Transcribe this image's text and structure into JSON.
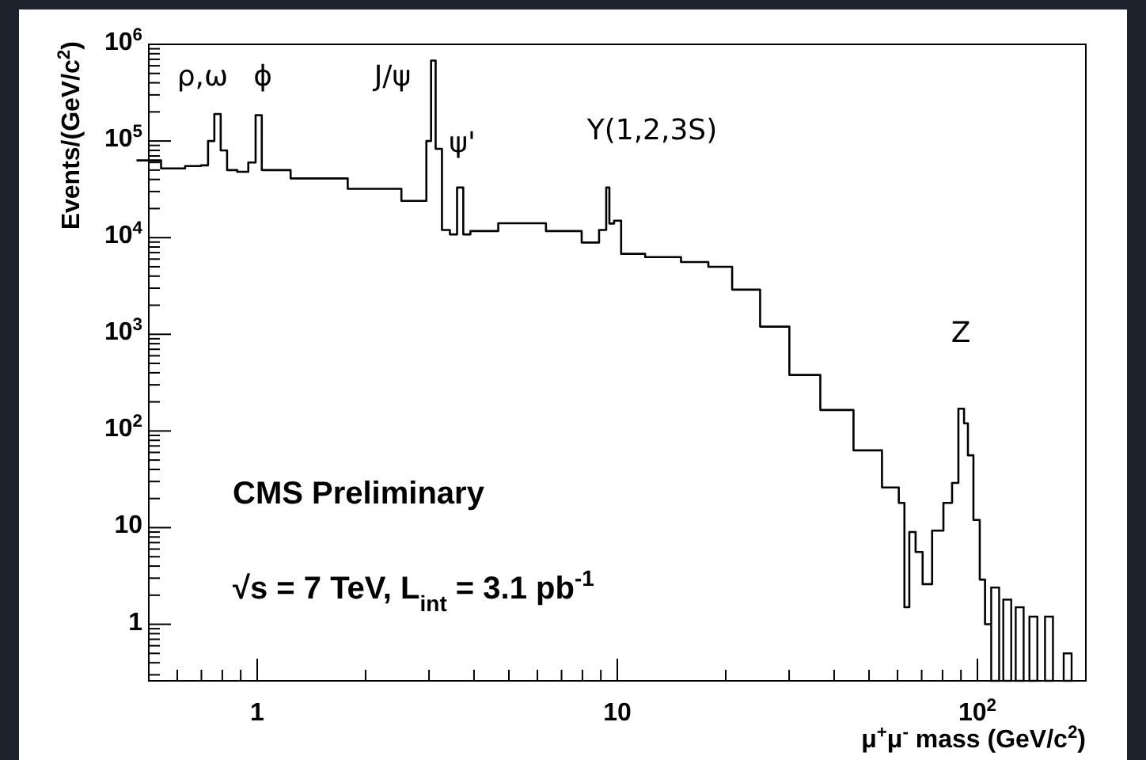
{
  "chart_data": {
    "type": "step",
    "xlabel": "μ$^{+}$μ$^{-}$ mass (GeV/c$^{2}$)",
    "ylabel": "Events/(GeV/c$^{2}$)",
    "log": "xy",
    "xlim": [
      0.5,
      200
    ],
    "ylim": [
      0.26,
      1000000
    ],
    "xticks": [
      1,
      10,
      {
        "value": 100,
        "label": "10$^{2}$"
      }
    ],
    "yticks": [
      1,
      10,
      {
        "value": 100,
        "label": "10$^{2}$"
      },
      {
        "value": 1000,
        "label": "10$^{3}$"
      },
      {
        "value": 10000,
        "label": "10$^{4}$"
      },
      {
        "value": 100000,
        "label": "10$^{5}$"
      },
      {
        "value": 1000000,
        "label": "10$^{6}$"
      }
    ],
    "grid": false,
    "marker": "none",
    "line_style": "solid",
    "series": [
      {
        "color": "#000000",
        "x": [
          0.5,
          0.585,
          0.68,
          0.716,
          0.745,
          0.776,
          0.808,
          0.842,
          0.92,
          0.97,
          1.01,
          1.05,
          1.46,
          2.18,
          2.9,
          3.0,
          3.08,
          3.18,
          3.34,
          3.52,
          3.66,
          3.81,
          4.01,
          5.44,
          7.38,
          8.59,
          9.22,
          9.41,
          9.6,
          10.0,
          10.5,
          13.6,
          16.6,
          19.3,
          22.5,
          27.6,
          32.7,
          41,
          50,
          59,
          62,
          63.4,
          66,
          68.7,
          72.2,
          77.6,
          83.4,
          86.7,
          90.4,
          93.2,
          95,
          100,
          103,
          107
        ],
        "values": [
          63000,
          52000,
          55000,
          56000,
          100000,
          190000,
          80000,
          50000,
          48000,
          60000,
          185000,
          50000,
          41000,
          32000,
          24000,
          100000,
          680000,
          83000,
          12000,
          10800,
          33000,
          10800,
          11700,
          14100,
          11700,
          8900,
          12000,
          33000,
          14000,
          15000,
          6800,
          6300,
          5600,
          5000,
          2900,
          1200,
          380,
          165,
          63,
          26,
          18,
          1.5,
          9,
          5.6,
          2.6,
          9.3,
          18,
          29,
          170,
          120,
          56,
          12,
          2.9,
          1
        ]
      },
      {
        "type": "bar",
        "color": "#000000",
        "x": [
          112,
          121,
          131,
          143,
          158,
          178
        ],
        "values": [
          2.4,
          1.8,
          1.5,
          1.2,
          1.2,
          0.5
        ]
      }
    ],
    "annotations": [
      "ρ,ω",
      "ϕ",
      "J/ψ",
      "ψ'",
      "Υ(1,2,3S)",
      "Z",
      "CMS Preliminary",
      "√s = 7 TeV,  L$_{int}$ = 3.1 pb$^{-1}$"
    ]
  }
}
